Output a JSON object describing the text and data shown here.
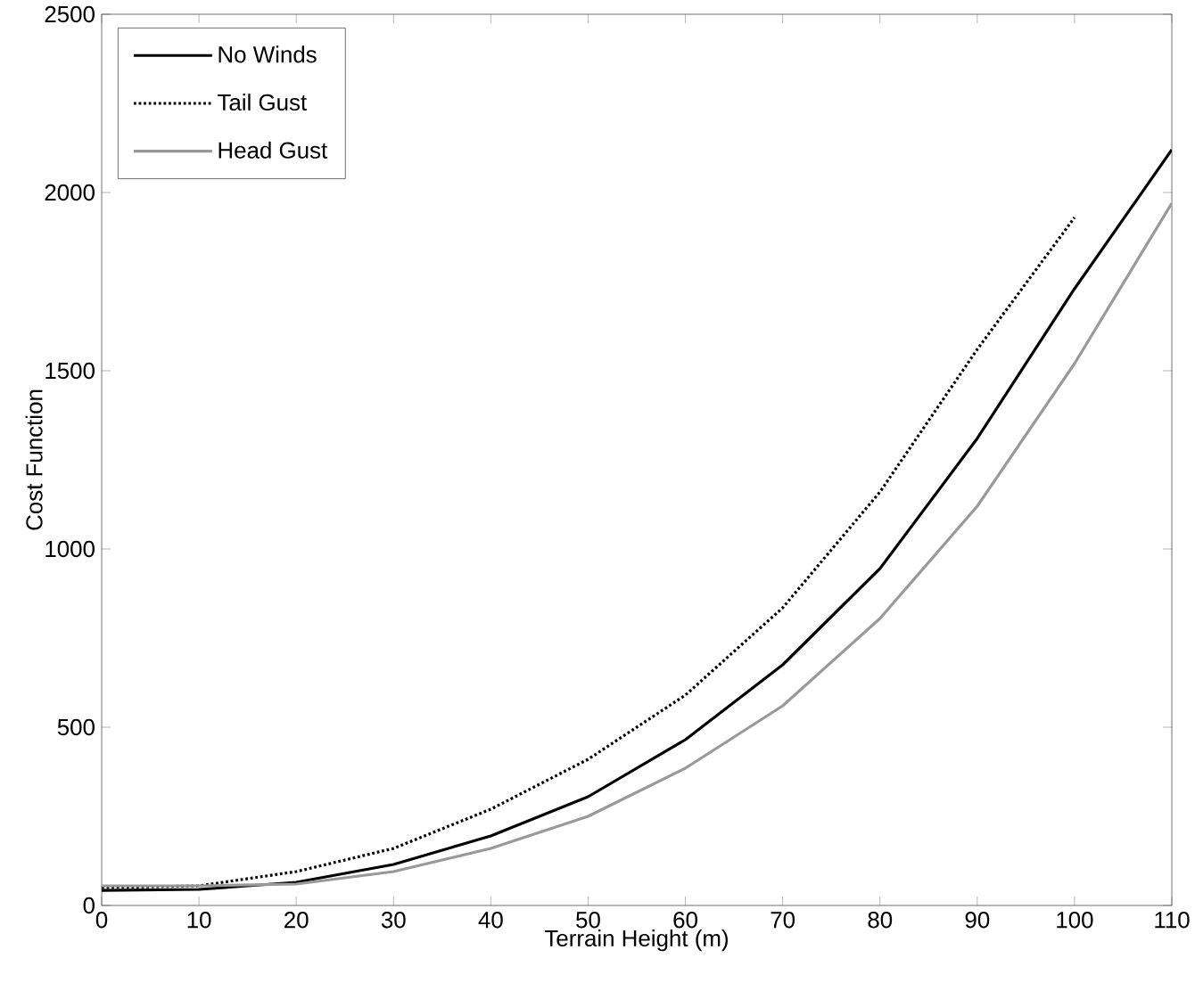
{
  "chart_data": {
    "type": "line",
    "xlabel": "Terrain Height (m)",
    "ylabel": "Cost Function",
    "x": [
      0,
      10,
      20,
      30,
      40,
      50,
      60,
      70,
      80,
      90,
      100,
      110
    ],
    "xlim": [
      0,
      110
    ],
    "ylim": [
      0,
      2500
    ],
    "xticks": [
      0,
      10,
      20,
      30,
      40,
      50,
      60,
      70,
      80,
      90,
      100,
      110
    ],
    "yticks": [
      0,
      500,
      1000,
      1500,
      2000,
      2500
    ],
    "grid": false,
    "legend": "top left",
    "marker": "none",
    "series": [
      {
        "name": "No Winds",
        "color": "#000000",
        "line_style": "solid",
        "values": [
          42,
          45,
          65,
          115,
          195,
          305,
          465,
          675,
          945,
          1310,
          1730,
          2120
        ]
      },
      {
        "name": "Tail Gust",
        "color": "#000000",
        "line_style": "dotted",
        "x": [
          0,
          10,
          20,
          30,
          40,
          50,
          60,
          70,
          80,
          90,
          100
        ],
        "values": [
          50,
          55,
          95,
          160,
          270,
          410,
          590,
          835,
          1160,
          1560,
          1930
        ]
      },
      {
        "name": "Head Gust",
        "color": "#999999",
        "line_style": "solid",
        "values": [
          55,
          55,
          60,
          95,
          160,
          250,
          385,
          560,
          805,
          1120,
          1520,
          1970
        ]
      }
    ]
  }
}
